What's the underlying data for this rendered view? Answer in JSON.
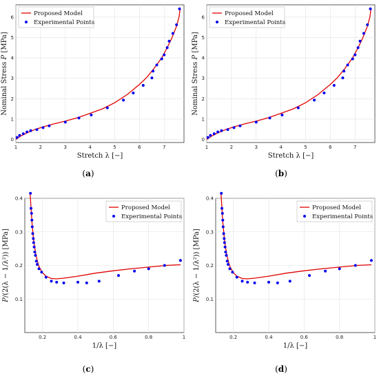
{
  "chart_data": [
    {
      "type": "line",
      "panel_label": "a",
      "xlabel_pre": "Stretch λ ",
      "xlabel_unit": "[−]",
      "ylabel_pre": "Nominal Stress ",
      "ylabel_var": "P",
      "ylabel_unit": " [MPa]",
      "xlim": [
        1,
        7.8
      ],
      "ylim": [
        -0.15,
        6.6
      ],
      "xticks": [
        1,
        2,
        3,
        4,
        5,
        6,
        7
      ],
      "yticks": [
        0,
        1,
        2,
        3,
        4,
        5,
        6
      ],
      "legend_position": "top-left",
      "series": [
        {
          "name": "Proposed Model",
          "kind": "line",
          "color": "#e00000",
          "x": [
            1.0,
            1.2,
            1.5,
            1.8,
            2.1,
            2.5,
            3.0,
            3.5,
            4.0,
            4.5,
            5.0,
            5.5,
            6.0,
            6.3,
            6.6,
            6.9,
            7.1,
            7.3,
            7.5,
            7.6,
            7.65
          ],
          "y": [
            0.0,
            0.17,
            0.35,
            0.5,
            0.62,
            0.75,
            0.9,
            1.07,
            1.28,
            1.5,
            1.8,
            2.2,
            2.7,
            3.05,
            3.5,
            4.0,
            4.45,
            4.95,
            5.55,
            6.0,
            6.45
          ]
        },
        {
          "name": "Experimental Points",
          "kind": "points",
          "color": "#0000ee",
          "x": [
            1.05,
            1.15,
            1.3,
            1.45,
            1.6,
            1.85,
            2.1,
            2.35,
            3.0,
            3.55,
            4.05,
            4.7,
            5.35,
            5.75,
            6.15,
            6.5,
            6.55,
            6.7,
            6.9,
            7.0,
            7.12,
            7.2,
            7.35,
            7.5,
            7.62
          ],
          "y": [
            0.1,
            0.2,
            0.28,
            0.37,
            0.43,
            0.48,
            0.58,
            0.67,
            0.85,
            1.05,
            1.2,
            1.55,
            1.93,
            2.28,
            2.65,
            3.02,
            3.35,
            3.65,
            3.95,
            4.15,
            4.5,
            4.82,
            5.2,
            5.62,
            6.4
          ]
        }
      ]
    },
    {
      "type": "line",
      "panel_label": "b",
      "xlabel_pre": "Stretch λ ",
      "xlabel_unit": "[−]",
      "ylabel_pre": "Nominal Stress ",
      "ylabel_var": "P",
      "ylabel_unit": " [MPa]",
      "xlim": [
        1,
        7.8
      ],
      "ylim": [
        -0.15,
        6.6
      ],
      "xticks": [
        1,
        2,
        3,
        4,
        5,
        6,
        7
      ],
      "yticks": [
        0,
        1,
        2,
        3,
        4,
        5,
        6
      ],
      "legend_position": "top-left",
      "series": [
        {
          "name": "Proposed Model",
          "kind": "line",
          "color": "#e00000",
          "x": [
            1.0,
            1.2,
            1.5,
            1.8,
            2.1,
            2.5,
            3.0,
            3.5,
            4.0,
            4.5,
            5.0,
            5.5,
            6.0,
            6.3,
            6.6,
            6.9,
            7.1,
            7.3,
            7.5,
            7.6,
            7.65
          ],
          "y": [
            0.0,
            0.17,
            0.35,
            0.5,
            0.62,
            0.75,
            0.9,
            1.07,
            1.28,
            1.5,
            1.8,
            2.2,
            2.7,
            3.05,
            3.5,
            4.0,
            4.45,
            4.95,
            5.55,
            6.0,
            6.45
          ]
        },
        {
          "name": "Experimental Points",
          "kind": "points",
          "color": "#0000ee",
          "x": [
            1.05,
            1.15,
            1.3,
            1.45,
            1.6,
            1.85,
            2.1,
            2.35,
            3.0,
            3.55,
            4.05,
            4.7,
            5.35,
            5.75,
            6.15,
            6.5,
            6.55,
            6.7,
            6.9,
            7.0,
            7.12,
            7.2,
            7.35,
            7.5,
            7.62
          ],
          "y": [
            0.1,
            0.2,
            0.28,
            0.37,
            0.43,
            0.48,
            0.58,
            0.67,
            0.85,
            1.05,
            1.2,
            1.55,
            1.93,
            2.28,
            2.65,
            3.02,
            3.35,
            3.65,
            3.95,
            4.15,
            4.5,
            4.82,
            5.2,
            5.62,
            6.4
          ]
        }
      ]
    },
    {
      "type": "line",
      "panel_label": "c",
      "xlabel_pre": "1/λ ",
      "xlabel_unit": "[−]",
      "ylabel_pre": "",
      "ylabel_var": "P",
      "ylabel_unit": "/(2(λ − 1/λ²)) [MPa]",
      "xlim": [
        0.1,
        1.0
      ],
      "ylim": [
        0.0,
        0.4
      ],
      "xticks": [
        0.2,
        0.4,
        0.6,
        0.8,
        1.0
      ],
      "yticks": [
        0.1,
        0.2,
        0.3,
        0.4
      ],
      "legend_position": "top-right",
      "series": [
        {
          "name": "Proposed Model",
          "kind": "line",
          "color": "#e00000",
          "x": [
            0.13,
            0.14,
            0.15,
            0.16,
            0.17,
            0.18,
            0.2,
            0.22,
            0.25,
            0.28,
            0.32,
            0.4,
            0.5,
            0.6,
            0.7,
            0.8,
            0.9,
            0.98
          ],
          "y": [
            0.415,
            0.33,
            0.275,
            0.24,
            0.215,
            0.197,
            0.178,
            0.168,
            0.161,
            0.16,
            0.162,
            0.168,
            0.177,
            0.184,
            0.19,
            0.195,
            0.2,
            0.202
          ]
        },
        {
          "name": "Experimental Points",
          "kind": "points",
          "color": "#0000ee",
          "x": [
            0.132,
            0.135,
            0.138,
            0.14,
            0.142,
            0.145,
            0.148,
            0.15,
            0.153,
            0.156,
            0.16,
            0.165,
            0.17,
            0.18,
            0.195,
            0.22,
            0.25,
            0.28,
            0.32,
            0.4,
            0.45,
            0.52,
            0.63,
            0.72,
            0.8,
            0.89,
            0.98
          ],
          "y": [
            0.415,
            0.37,
            0.355,
            0.335,
            0.315,
            0.295,
            0.28,
            0.268,
            0.255,
            0.24,
            0.23,
            0.213,
            0.203,
            0.19,
            0.18,
            0.165,
            0.153,
            0.15,
            0.148,
            0.15,
            0.148,
            0.153,
            0.17,
            0.183,
            0.19,
            0.2,
            0.215
          ]
        }
      ]
    },
    {
      "type": "line",
      "panel_label": "d",
      "xlabel_pre": "1/λ ",
      "xlabel_unit": "[−]",
      "ylabel_pre": "",
      "ylabel_var": "P",
      "ylabel_unit": "/(2(λ − 1/λ²)) [MPa]",
      "xlim": [
        0.1,
        1.0
      ],
      "ylim": [
        0.0,
        0.4
      ],
      "xticks": [
        0.2,
        0.4,
        0.6,
        0.8,
        1.0
      ],
      "yticks": [
        0.1,
        0.2,
        0.3,
        0.4
      ],
      "legend_position": "top-right",
      "series": [
        {
          "name": "Proposed Model",
          "kind": "line",
          "color": "#e00000",
          "x": [
            0.13,
            0.14,
            0.15,
            0.16,
            0.17,
            0.18,
            0.2,
            0.22,
            0.25,
            0.28,
            0.32,
            0.4,
            0.5,
            0.6,
            0.7,
            0.8,
            0.9,
            0.98
          ],
          "y": [
            0.415,
            0.33,
            0.275,
            0.24,
            0.215,
            0.197,
            0.178,
            0.168,
            0.161,
            0.16,
            0.162,
            0.168,
            0.177,
            0.184,
            0.19,
            0.195,
            0.2,
            0.202
          ]
        },
        {
          "name": "Experimental Points",
          "kind": "points",
          "color": "#0000ee",
          "x": [
            0.132,
            0.135,
            0.138,
            0.14,
            0.142,
            0.145,
            0.148,
            0.15,
            0.153,
            0.156,
            0.16,
            0.165,
            0.17,
            0.18,
            0.195,
            0.22,
            0.25,
            0.28,
            0.32,
            0.4,
            0.45,
            0.52,
            0.63,
            0.72,
            0.8,
            0.89,
            0.98
          ],
          "y": [
            0.415,
            0.37,
            0.355,
            0.335,
            0.315,
            0.295,
            0.28,
            0.268,
            0.255,
            0.24,
            0.23,
            0.213,
            0.203,
            0.19,
            0.18,
            0.165,
            0.153,
            0.15,
            0.148,
            0.15,
            0.148,
            0.153,
            0.17,
            0.183,
            0.19,
            0.2,
            0.215
          ]
        }
      ]
    }
  ]
}
